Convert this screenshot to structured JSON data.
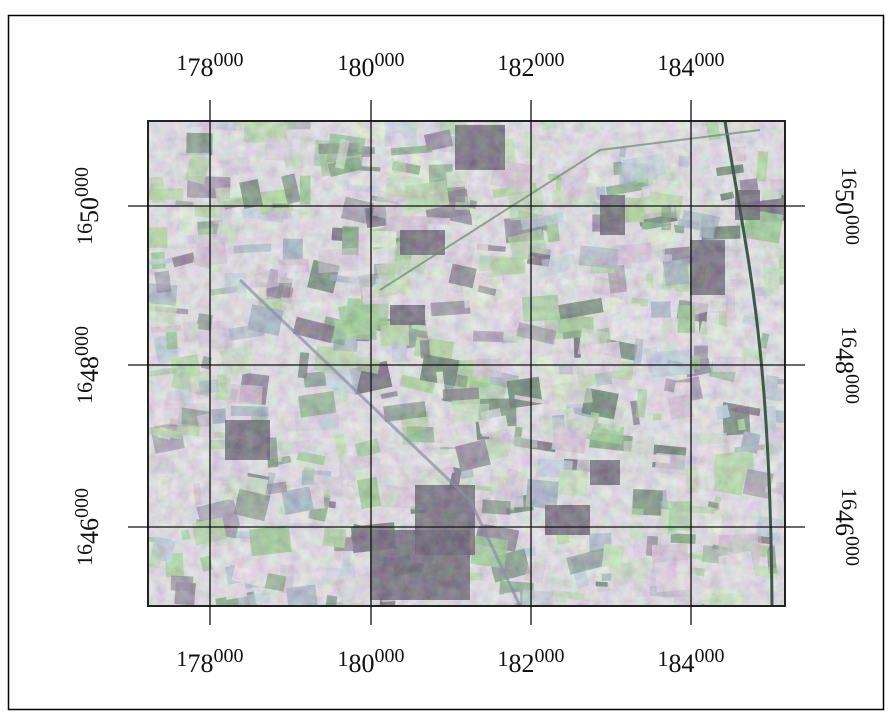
{
  "eastings": [
    {
      "prefix": "1",
      "main": "78",
      "suffix": "000"
    },
    {
      "prefix": "1",
      "main": "80",
      "suffix": "000"
    },
    {
      "prefix": "1",
      "main": "82",
      "suffix": "000"
    },
    {
      "prefix": "1",
      "main": "84",
      "suffix": "000"
    }
  ],
  "northings": [
    {
      "prefix": "16",
      "main": "50",
      "suffix": "000"
    },
    {
      "prefix": "16",
      "main": "48",
      "suffix": "000"
    },
    {
      "prefix": "16",
      "main": "46",
      "suffix": "000"
    }
  ]
}
